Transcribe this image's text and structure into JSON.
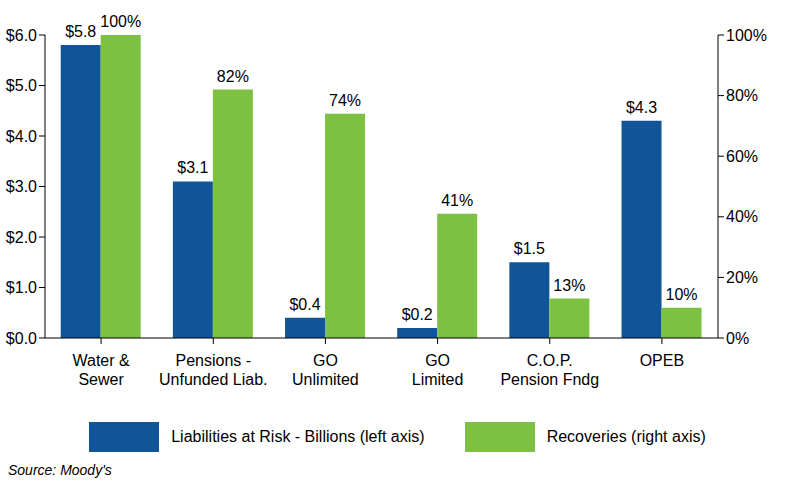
{
  "chart_data": {
    "type": "bar",
    "categories": [
      "Water &\nSewer",
      "Pensions -\nUnfunded Liab.",
      "GO\nUnlimited",
      "GO\nLimited",
      "C.O.P.\nPension Fndg",
      "OPEB"
    ],
    "series": [
      {
        "name": "Liabilities at Risk - Billions (left axis)",
        "color": "#0f5597",
        "values": [
          5.8,
          3.1,
          0.4,
          0.2,
          1.5,
          4.3
        ],
        "value_labels": [
          "$5.8",
          "$3.1",
          "$0.4",
          "$0.2",
          "$1.5",
          "$4.3"
        ],
        "axis": "y"
      },
      {
        "name": "Recoveries (right axis)",
        "color": "#7cc142",
        "values": [
          100,
          82,
          74,
          41,
          13,
          10
        ],
        "value_labels": [
          "100%",
          "82%",
          "74%",
          "41%",
          "13%",
          "10%"
        ],
        "axis": "y2"
      }
    ],
    "ylim": [
      0,
      6
    ],
    "yticks": [
      {
        "value": 0,
        "label": "$0.0"
      },
      {
        "value": 1,
        "label": "$1.0"
      },
      {
        "value": 2,
        "label": "$2.0"
      },
      {
        "value": 3,
        "label": "$3.0"
      },
      {
        "value": 4,
        "label": "$4.0"
      },
      {
        "value": 5,
        "label": "$5.0"
      },
      {
        "value": 6,
        "label": "$6.0"
      }
    ],
    "y2lim": [
      0,
      100
    ],
    "y2ticks": [
      {
        "value": 0,
        "label": "0%"
      },
      {
        "value": 20,
        "label": "20%"
      },
      {
        "value": 40,
        "label": "40%"
      },
      {
        "value": 60,
        "label": "60%"
      },
      {
        "value": 80,
        "label": "80%"
      },
      {
        "value": 100,
        "label": "100%"
      }
    ],
    "data_labels": true,
    "legend": "bottom",
    "grid": false,
    "annotations": [
      "Source: Moody's"
    ]
  }
}
